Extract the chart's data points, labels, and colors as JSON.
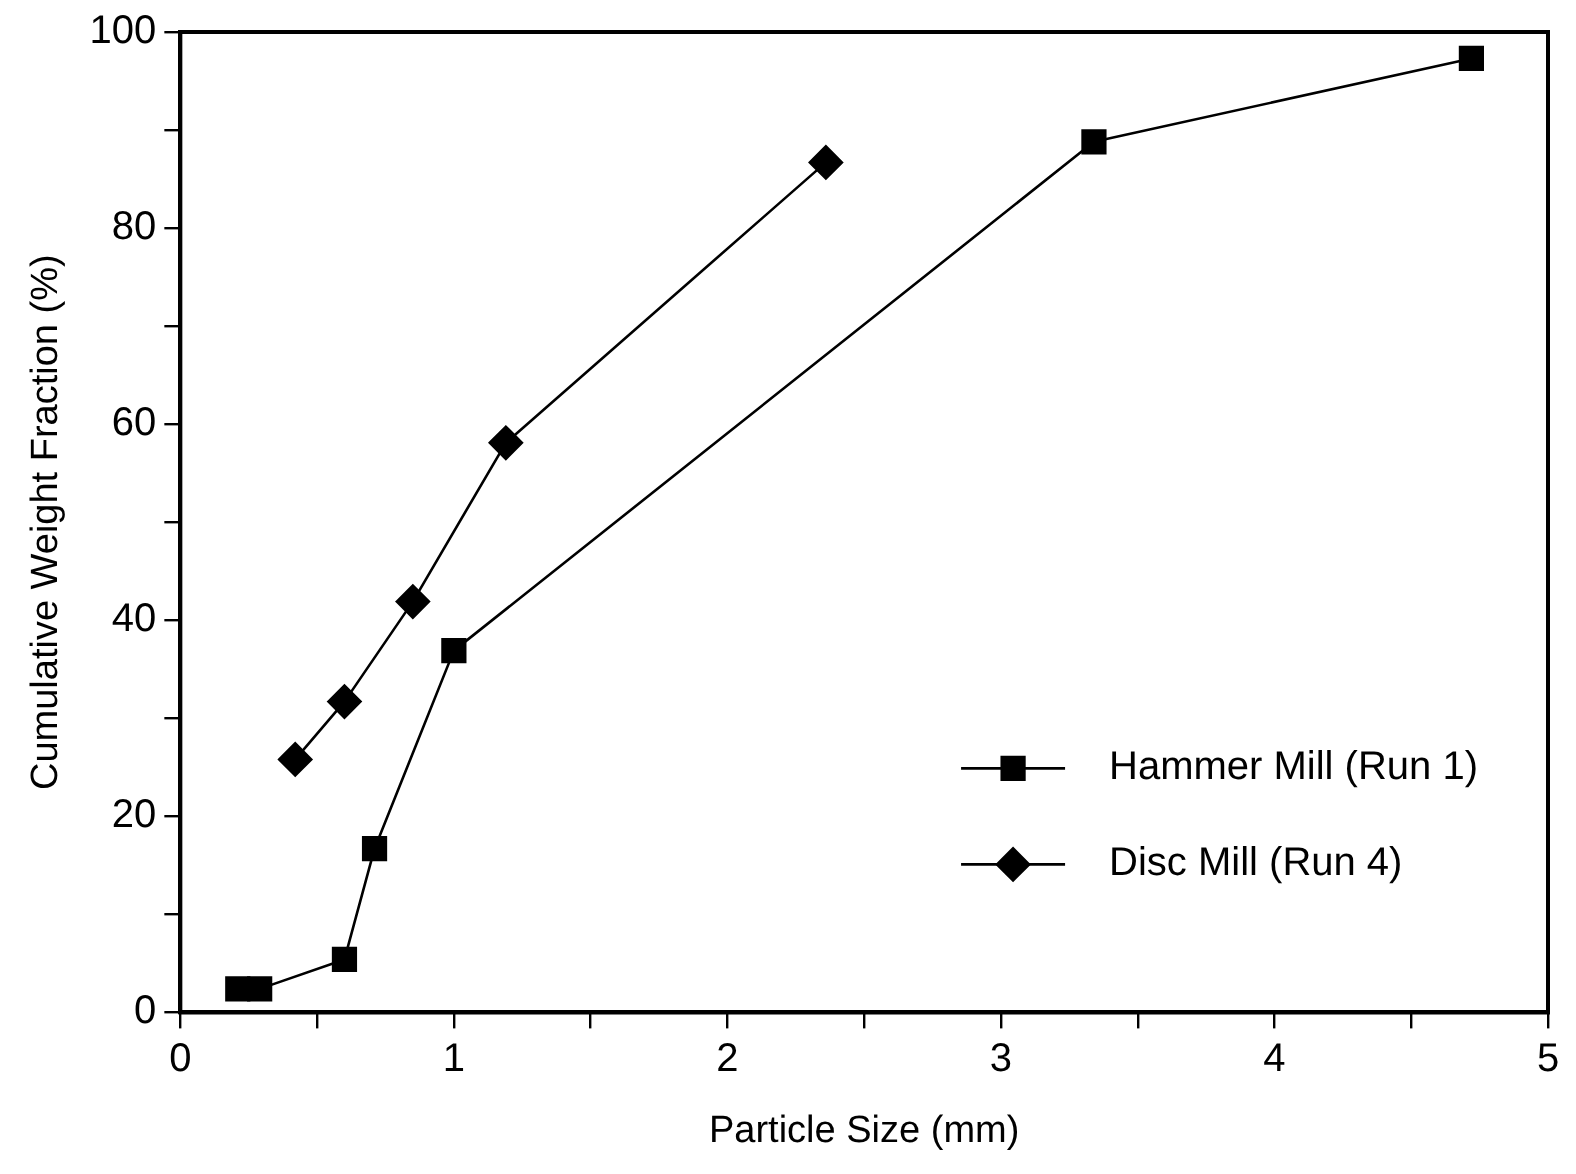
{
  "chart_data": {
    "type": "line",
    "xlabel": "Particle Size (mm)",
    "ylabel": "Cumulative Weight Fraction (%)",
    "xlim": [
      0,
      5
    ],
    "xticks": [
      0,
      {
        "value": 0.5,
        "label": null
      },
      1,
      {
        "value": 1.5,
        "label": null
      },
      2,
      {
        "value": 2.5,
        "label": null
      },
      3,
      {
        "value": 3.5,
        "label": null
      },
      4,
      {
        "value": 4.5,
        "label": null
      },
      5
    ],
    "ylim": [
      0,
      100
    ],
    "yticks": [
      0,
      {
        "value": 10,
        "label": null
      },
      20,
      {
        "value": 30,
        "label": null
      },
      40,
      {
        "value": 50,
        "label": null
      },
      60,
      {
        "value": 70,
        "label": null
      },
      80,
      {
        "value": 90,
        "label": null
      },
      100
    ],
    "legend": "bottom right",
    "line_style": "solid",
    "series": [
      {
        "name": "Hammer Mill (Run 1)",
        "color": "#000000",
        "marker": "square",
        "x": [
          0.21,
          0.29,
          0.6,
          0.71,
          1.0,
          3.34,
          4.72
        ],
        "values": [
          2.4,
          2.4,
          5.4,
          16.7,
          36.9,
          88.8,
          97.3
        ]
      },
      {
        "name": "Disc Mill (Run 4)",
        "color": "#000000",
        "marker": "diamond",
        "x": [
          0.42,
          0.6,
          0.85,
          1.19,
          2.36
        ],
        "values": [
          25.8,
          31.7,
          41.9,
          58.1,
          86.7
        ]
      }
    ]
  }
}
